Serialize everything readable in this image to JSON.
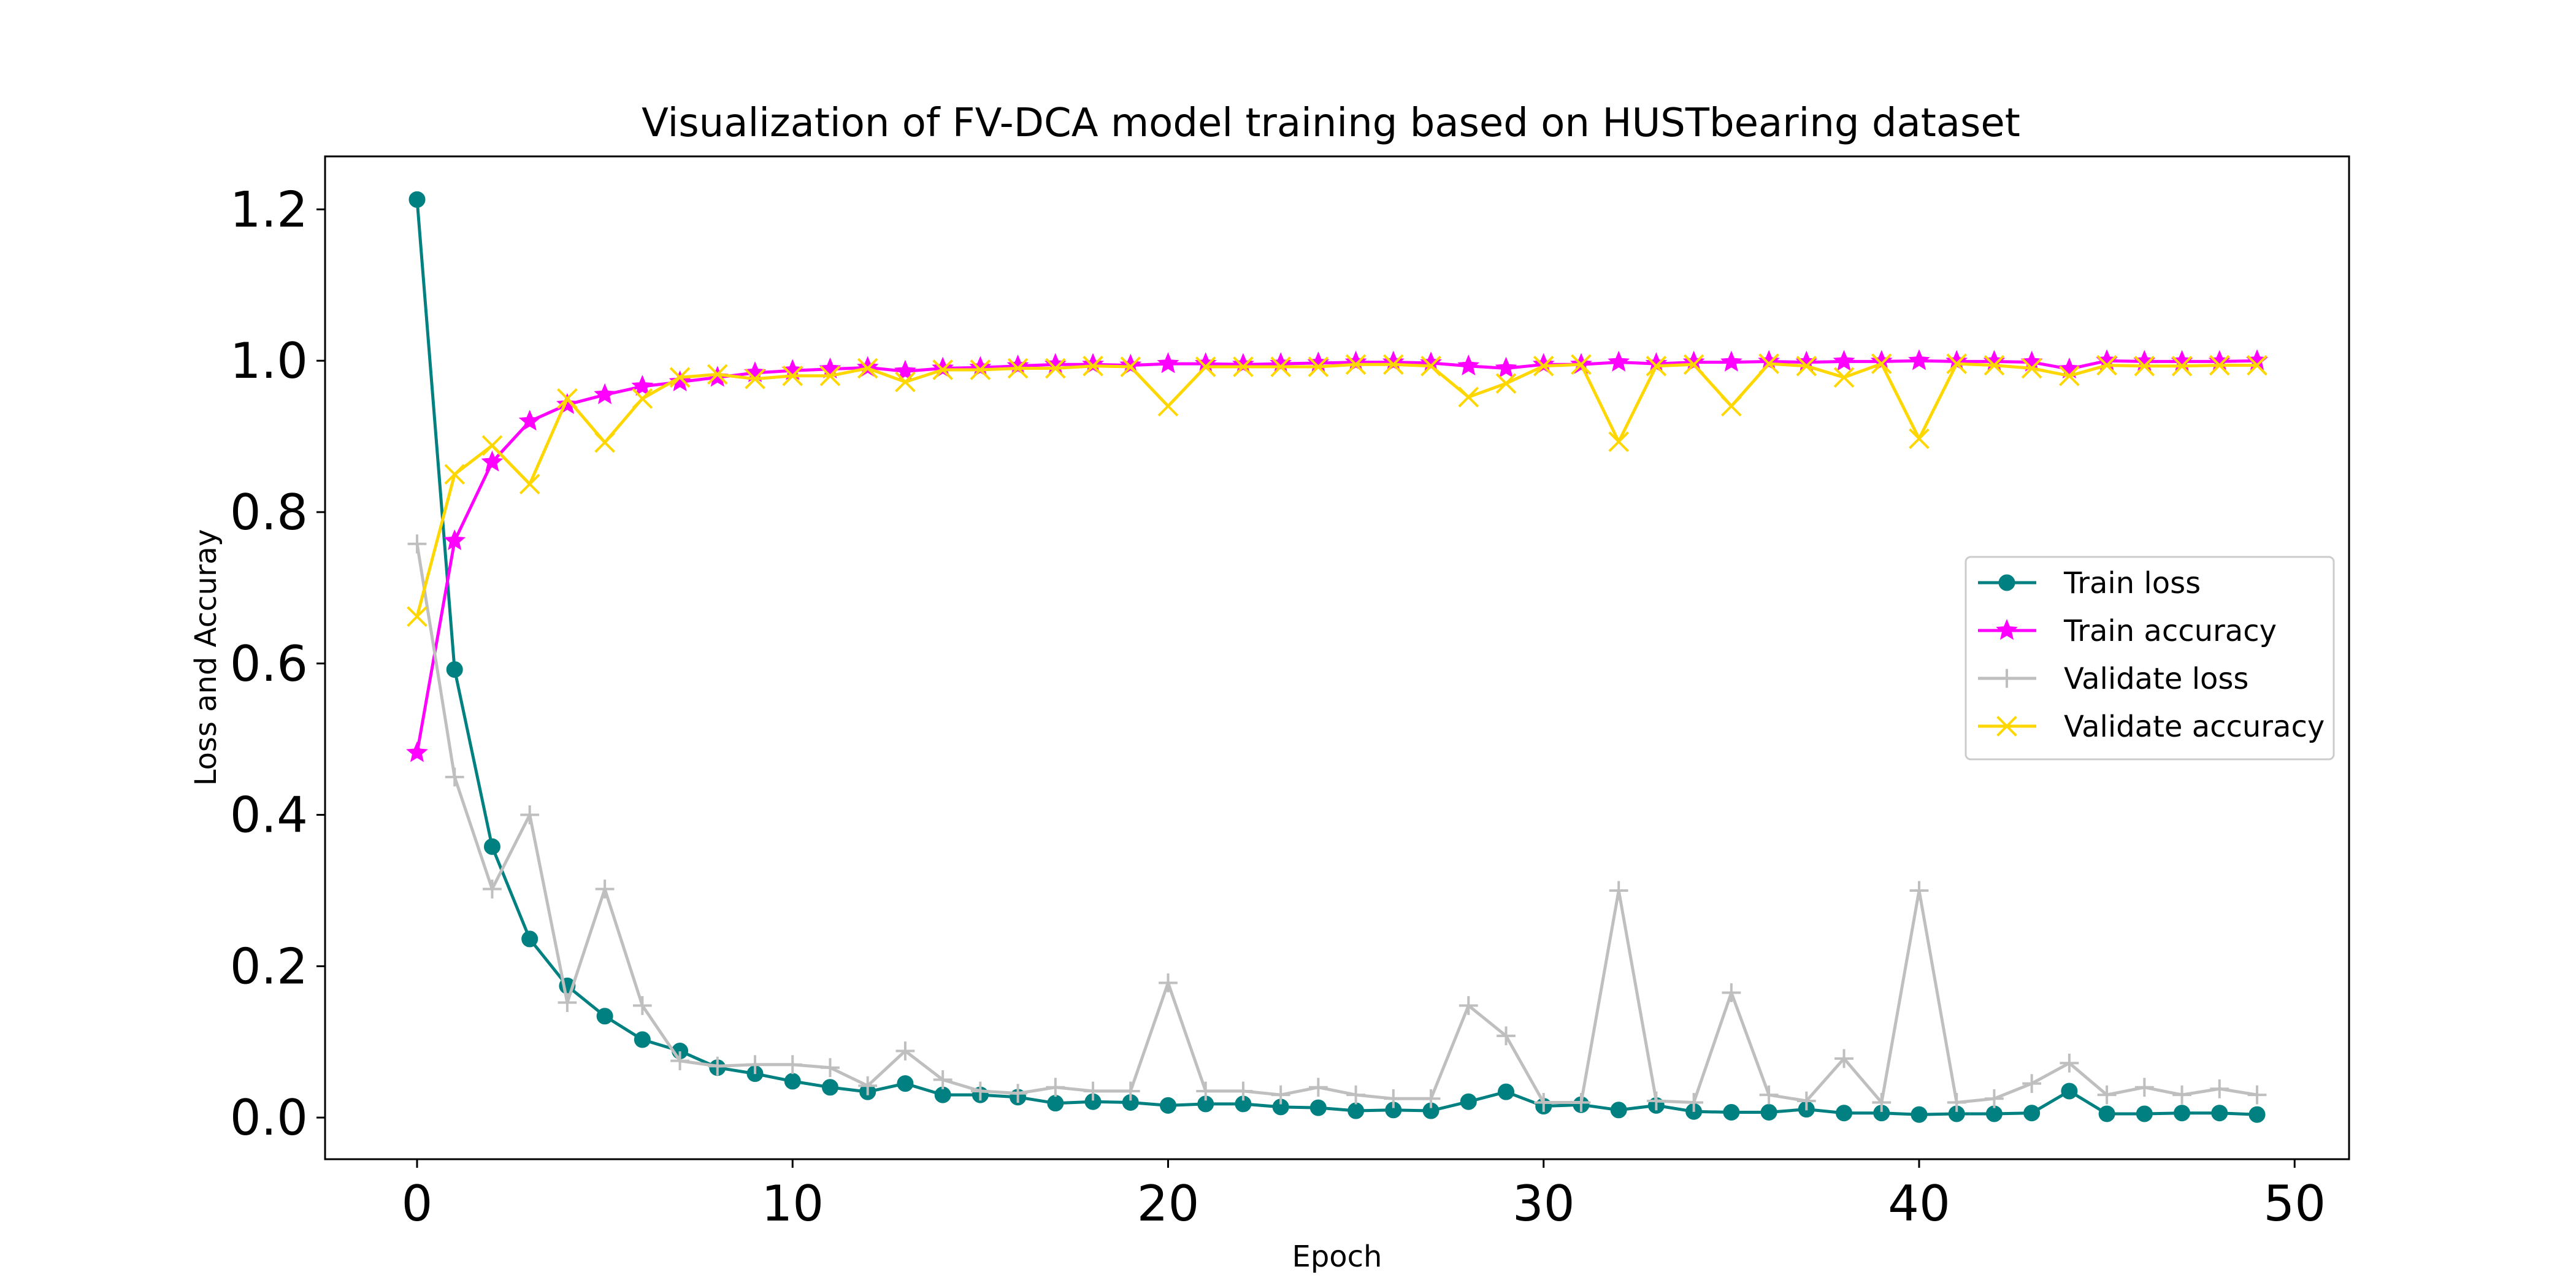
{
  "chart_data": {
    "type": "line",
    "title": "Visualization of FV-DCA model training based on HUSTbearing dataset",
    "xlabel": "Epoch",
    "ylabel": "Loss and Accuray",
    "xlim": [
      -2.45,
      51.45
    ],
    "ylim": [
      -0.055,
      1.27
    ],
    "xticks": [
      0,
      10,
      20,
      30,
      40,
      50
    ],
    "yticks": [
      0.0,
      0.2,
      0.4,
      0.6,
      0.8,
      1.0,
      1.2
    ],
    "xtick_labels": [
      "0",
      "10",
      "20",
      "30",
      "40",
      "50"
    ],
    "ytick_labels": [
      "0.0",
      "0.2",
      "0.4",
      "0.6",
      "0.8",
      "1.0",
      "1.2"
    ],
    "grid": false,
    "legend_position": "center-right",
    "x": [
      0,
      1,
      2,
      3,
      4,
      5,
      6,
      7,
      8,
      9,
      10,
      11,
      12,
      13,
      14,
      15,
      16,
      17,
      18,
      19,
      20,
      21,
      22,
      23,
      24,
      25,
      26,
      27,
      28,
      29,
      30,
      31,
      32,
      33,
      34,
      35,
      36,
      37,
      38,
      39,
      40,
      41,
      42,
      43,
      44,
      45,
      46,
      47,
      48,
      49
    ],
    "series": [
      {
        "name": "Train loss",
        "color": "#008080",
        "marker": "circle",
        "values": [
          1.213,
          0.592,
          0.358,
          0.236,
          0.174,
          0.134,
          0.103,
          0.088,
          0.066,
          0.058,
          0.048,
          0.04,
          0.034,
          0.045,
          0.03,
          0.03,
          0.027,
          0.019,
          0.021,
          0.02,
          0.016,
          0.018,
          0.018,
          0.014,
          0.013,
          0.009,
          0.01,
          0.009,
          0.021,
          0.034,
          0.015,
          0.017,
          0.01,
          0.016,
          0.008,
          0.007,
          0.007,
          0.011,
          0.006,
          0.006,
          0.004,
          0.005,
          0.005,
          0.006,
          0.035,
          0.005,
          0.005,
          0.006,
          0.006,
          0.004
        ]
      },
      {
        "name": "Train accuracy",
        "color": "#ff00ff",
        "marker": "star",
        "values": [
          0.482,
          0.762,
          0.866,
          0.92,
          0.942,
          0.955,
          0.966,
          0.972,
          0.978,
          0.984,
          0.987,
          0.989,
          0.991,
          0.986,
          0.99,
          0.991,
          0.993,
          0.995,
          0.995,
          0.994,
          0.996,
          0.996,
          0.995,
          0.996,
          0.997,
          0.998,
          0.998,
          0.997,
          0.993,
          0.99,
          0.995,
          0.995,
          0.998,
          0.996,
          0.998,
          0.998,
          0.999,
          0.998,
          0.999,
          0.999,
          1.0,
          0.999,
          0.999,
          0.998,
          0.989,
          1.0,
          0.999,
          0.999,
          0.999,
          1.0
        ]
      },
      {
        "name": "Validate loss",
        "color": "#bfbfbf",
        "marker": "plus",
        "values": [
          0.758,
          0.45,
          0.302,
          0.4,
          0.152,
          0.302,
          0.148,
          0.075,
          0.068,
          0.07,
          0.07,
          0.066,
          0.042,
          0.088,
          0.05,
          0.035,
          0.032,
          0.04,
          0.035,
          0.035,
          0.178,
          0.035,
          0.035,
          0.03,
          0.04,
          0.03,
          0.025,
          0.025,
          0.148,
          0.108,
          0.02,
          0.02,
          0.3,
          0.022,
          0.02,
          0.165,
          0.03,
          0.022,
          0.078,
          0.02,
          0.3,
          0.02,
          0.025,
          0.045,
          0.072,
          0.03,
          0.04,
          0.03,
          0.038,
          0.03
        ]
      },
      {
        "name": "Validate accuracy",
        "color": "#ffd700",
        "marker": "x",
        "values": [
          0.662,
          0.85,
          0.888,
          0.837,
          0.95,
          0.892,
          0.95,
          0.978,
          0.982,
          0.976,
          0.98,
          0.98,
          0.99,
          0.972,
          0.988,
          0.988,
          0.99,
          0.99,
          0.993,
          0.992,
          0.94,
          0.992,
          0.992,
          0.992,
          0.992,
          0.995,
          0.995,
          0.993,
          0.952,
          0.97,
          0.993,
          0.995,
          0.893,
          0.993,
          0.995,
          0.94,
          0.996,
          0.993,
          0.978,
          0.996,
          0.897,
          0.996,
          0.994,
          0.99,
          0.98,
          0.994,
          0.993,
          0.993,
          0.994,
          0.994
        ]
      }
    ]
  }
}
